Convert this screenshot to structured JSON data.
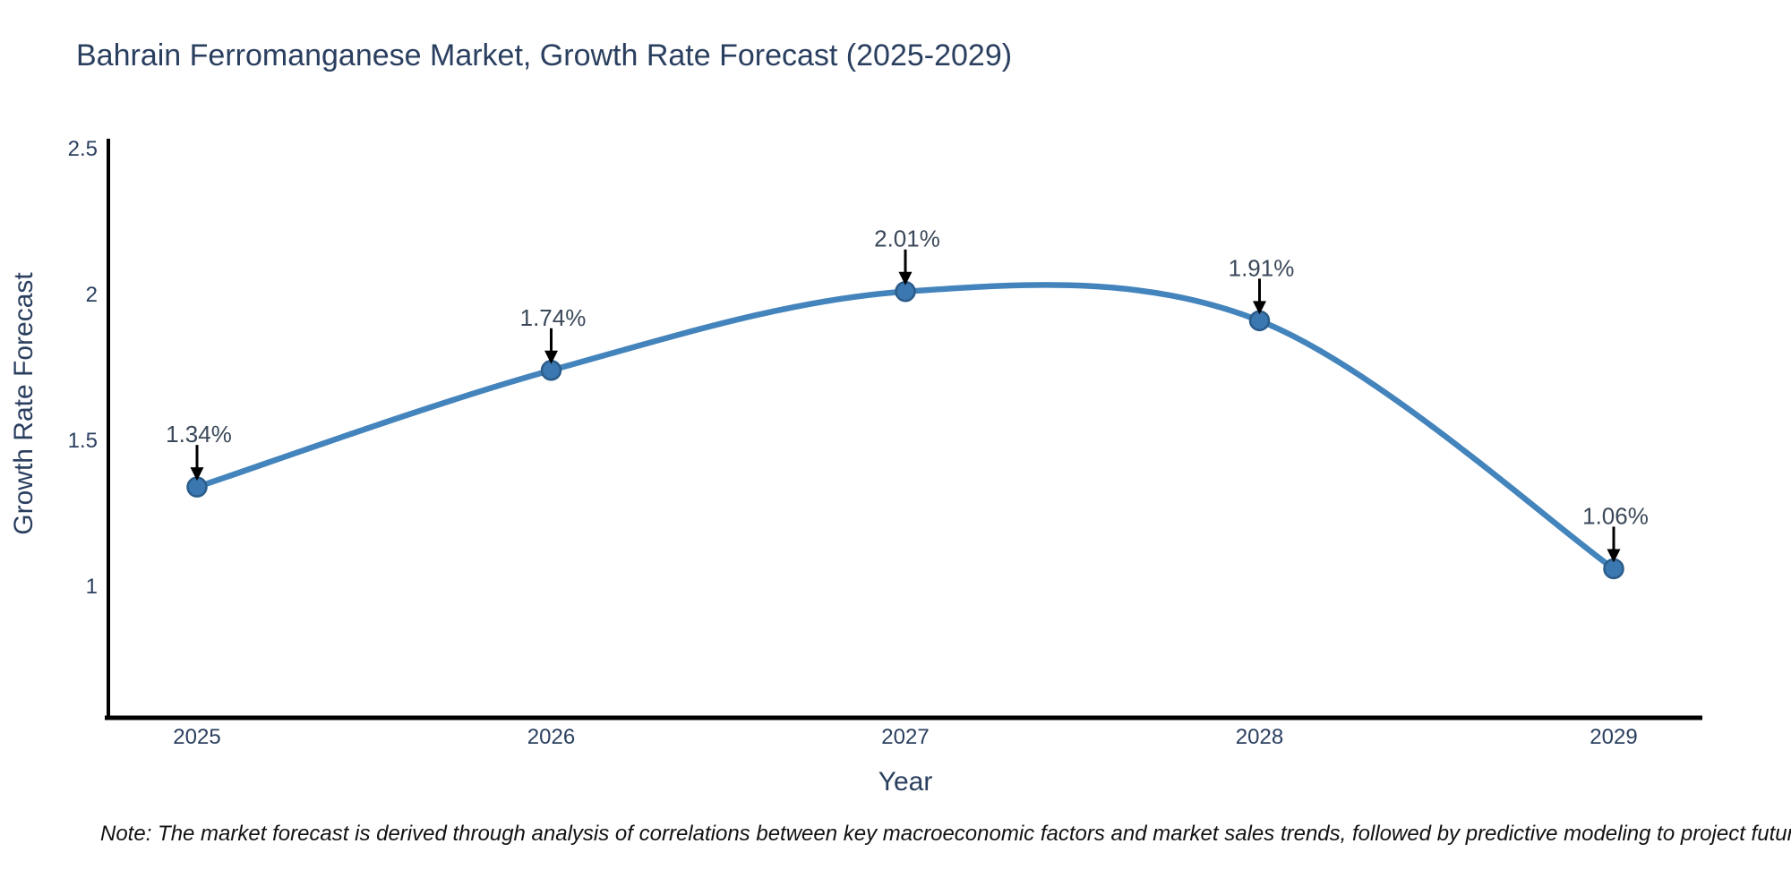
{
  "title": "Bahrain Ferromanganese Market, Growth Rate Forecast (2025-2029)",
  "note": "Note: The market forecast is derived through analysis of correlations between key macroeconomic factors and market sales trends, followed by predictive modeling to project future sales",
  "chart_data": {
    "type": "line",
    "title": "Bahrain Ferromanganese Market, Growth Rate Forecast (2025-2029)",
    "xlabel": "Year",
    "ylabel": "Growth Rate Forecast",
    "x": [
      2025,
      2026,
      2027,
      2028,
      2029
    ],
    "x_tick_labels": [
      "2025",
      "2026",
      "2027",
      "2028",
      "2029"
    ],
    "series": [
      {
        "name": "Growth Rate Forecast",
        "values": [
          1.34,
          1.74,
          2.01,
          1.91,
          1.06
        ]
      }
    ],
    "point_labels": [
      "1.34%",
      "1.74%",
      "2.01%",
      "1.91%",
      "1.06%"
    ],
    "y_tick_values": [
      1,
      1.5,
      2,
      2.5
    ],
    "y_tick_labels": [
      "1",
      "1.5",
      "2",
      "2.5"
    ],
    "ylim": [
      0.55,
      2.53
    ],
    "xlim": [
      2024.74,
      2029.25
    ],
    "line_shape": "spline",
    "grid": false,
    "legend_position": "none",
    "annotation_style": "black-down-arrows",
    "colors": {
      "line": "#4484bc",
      "marker": "#3b77b0",
      "marker_edge": "#2b5c8a",
      "arrow": "#000000",
      "axis_line": "#000000",
      "text": "#2a3f5f",
      "annotation_text": "#3a4859",
      "background": "#ffffff"
    }
  }
}
